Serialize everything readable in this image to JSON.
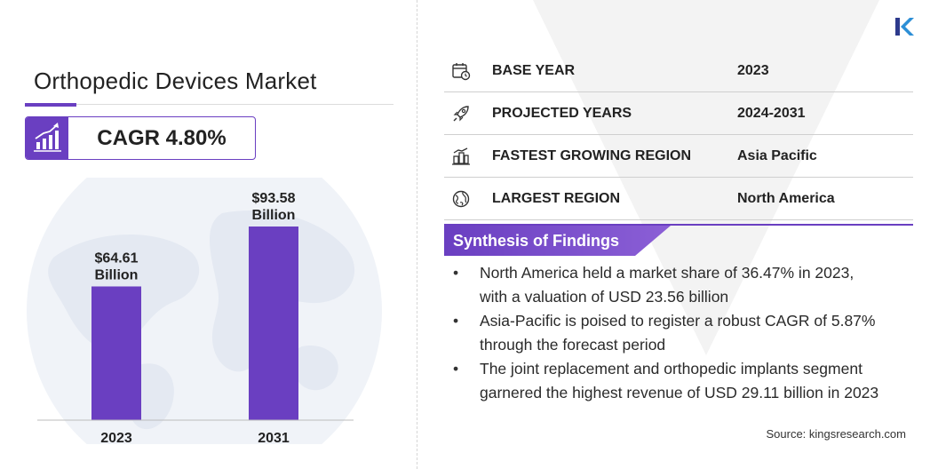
{
  "title": "Orthopedic Devices Market",
  "cagr": "CAGR 4.80%",
  "colors": {
    "accent": "#6a3fc1",
    "bar": "#6a3fc1",
    "tab_end": "#8b5fd6",
    "globe": "#eef2f8"
  },
  "icons": {
    "logo": "kings-research-logo",
    "cagr": "bar-chart-growth-icon"
  },
  "chart_data": {
    "type": "bar",
    "categories": [
      "2023",
      "2031"
    ],
    "values": [
      64.61,
      93.58
    ],
    "data_labels": [
      [
        "$64.61",
        "Billion"
      ],
      [
        "$93.58",
        "Billion"
      ]
    ],
    "title": "",
    "xlabel": "",
    "ylabel": "",
    "ylim": [
      0,
      100
    ],
    "grid": false
  },
  "info": [
    {
      "icon": "calendar-clock-icon",
      "label": "BASE YEAR",
      "value": "2023"
    },
    {
      "icon": "rocket-icon",
      "label": "PROJECTED YEARS",
      "value": "2024-2031"
    },
    {
      "icon": "growing-city-icon",
      "label": "FASTEST GROWING REGION",
      "value": "Asia Pacific"
    },
    {
      "icon": "globe-icon",
      "label": "LARGEST REGION",
      "value": "North America"
    }
  ],
  "synthesis": {
    "title": "Synthesis of Findings",
    "findings": [
      [
        "North America held a market share of 36.47% in 2023,",
        "with a valuation of USD 23.56 billion"
      ],
      [
        "Asia-Pacific is poised to register a robust CAGR of 5.87%",
        "through the forecast period"
      ],
      [
        "The joint replacement and orthopedic implants segment",
        "garnered the highest revenue of USD 29.11 billion in 2023"
      ]
    ]
  },
  "source": "Source:  kingsresearch.com"
}
